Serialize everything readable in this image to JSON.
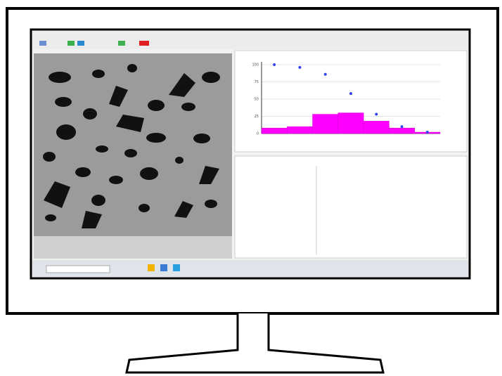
{
  "chart_data": {
    "type": "bar",
    "categories": [
      null,
      null,
      null,
      null,
      null,
      null,
      null
    ],
    "series": [
      {
        "color": "#ff00ff",
        "values": [
          8,
          10,
          28,
          30,
          18,
          8,
          2
        ]
      },
      {
        "color": "#3344ee",
        "values": [
          100,
          96,
          86,
          58,
          28,
          10,
          2
        ]
      }
    ],
    "ylim": [
      0,
      100
    ],
    "yticks": [
      0,
      25,
      50,
      75,
      100
    ],
    "grid": true
  }
}
